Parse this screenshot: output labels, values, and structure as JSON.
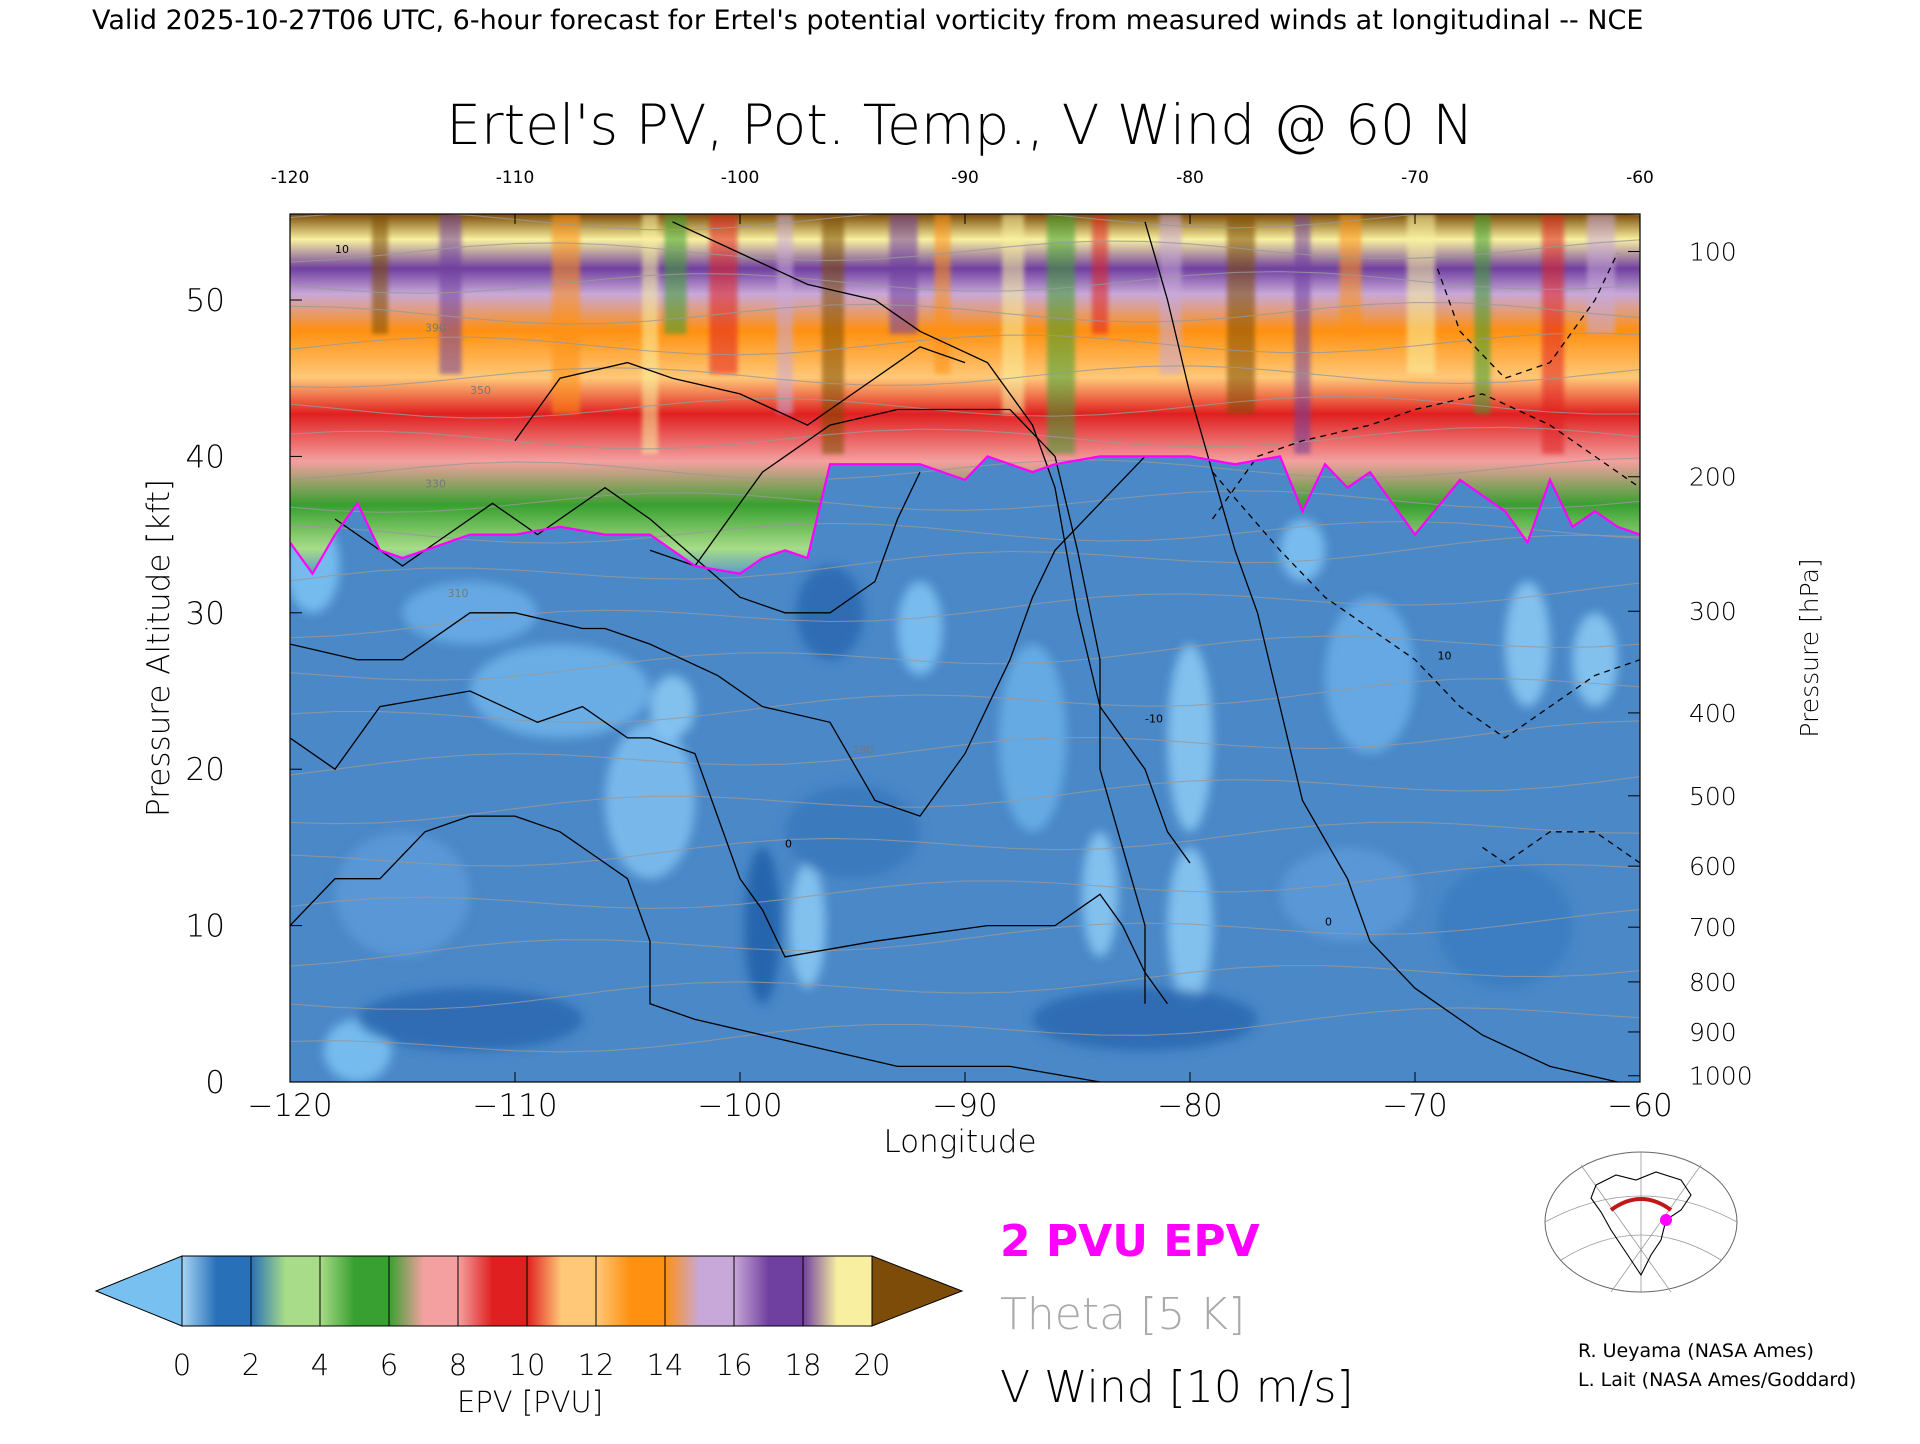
{
  "header": {
    "valid_line": "Valid 2025-10-27T06 UTC, 6-hour forecast for Ertel's potential vorticity from measured winds at longitudinal -- NCE"
  },
  "chart_data": {
    "type": "heatmap",
    "title": "Ertel's PV, Pot. Temp., V Wind @ 60 N",
    "xlabel": "Longitude",
    "ylabel": "Pressure Altitude [kft]",
    "ylabel_right": "Pressure [hPa]",
    "xlim": [
      -120,
      -60
    ],
    "ylim": [
      0,
      55.5
    ],
    "x_ticks": [
      -120,
      -110,
      -100,
      -90,
      -80,
      -70,
      -60
    ],
    "x_tick_labels": [
      "−120",
      "−110",
      "−100",
      "−90",
      "−80",
      "−70",
      "−60"
    ],
    "x_top_tick_labels": [
      "-120",
      "-110",
      "-100",
      "-90",
      "-80",
      "-70",
      "-60"
    ],
    "y_ticks": [
      0,
      10,
      20,
      30,
      40,
      50
    ],
    "y_tick_labels": [
      "0",
      "10",
      "20",
      "30",
      "40",
      "50"
    ],
    "pressure_ticks": [
      {
        "hPa": 100,
        "kft": 53.1,
        "label": "100"
      },
      {
        "hPa": 200,
        "kft": 38.7,
        "label": "200"
      },
      {
        "hPa": 300,
        "kft": 30.1,
        "label": "300"
      },
      {
        "hPa": 400,
        "kft": 23.6,
        "label": "400"
      },
      {
        "hPa": 500,
        "kft": 18.3,
        "label": "500"
      },
      {
        "hPa": 600,
        "kft": 13.8,
        "label": "600"
      },
      {
        "hPa": 700,
        "kft": 9.9,
        "label": "700"
      },
      {
        "hPa": 800,
        "kft": 6.4,
        "label": "800"
      },
      {
        "hPa": 900,
        "kft": 3.2,
        "label": "900"
      },
      {
        "hPa": 1000,
        "kft": 0.4,
        "label": "1000"
      }
    ],
    "pv_boundary_2pvu": {
      "lon": [
        -120,
        -119,
        -118,
        -117,
        -116,
        -115,
        -114,
        -113,
        -112,
        -110,
        -108,
        -106,
        -104,
        -102,
        -100,
        -99,
        -98,
        -97,
        -96,
        -95,
        -94,
        -92,
        -90,
        -89,
        -88,
        -87,
        -86,
        -84,
        -82,
        -80,
        -78,
        -76,
        -75,
        -74,
        -73,
        -72,
        -70,
        -68,
        -66,
        -65,
        -64,
        -63,
        -62,
        -61,
        -60
      ],
      "kft": [
        34.5,
        32.5,
        35.0,
        37.0,
        34.0,
        33.5,
        34.0,
        34.5,
        35.0,
        35.0,
        35.5,
        35.0,
        35.0,
        33.0,
        32.5,
        33.5,
        34.0,
        33.5,
        39.5,
        39.5,
        39.5,
        39.5,
        38.5,
        40.0,
        39.5,
        39.0,
        39.5,
        40.0,
        40.0,
        40.0,
        39.5,
        40.0,
        36.5,
        39.5,
        38.0,
        39.0,
        35.0,
        38.5,
        36.5,
        34.5,
        38.5,
        35.5,
        36.5,
        35.5,
        35.0
      ]
    },
    "vwind_contour_labels": [
      "10",
      "0",
      "-10"
    ],
    "theta_labels": [
      "390",
      "350",
      "330",
      "310",
      "290"
    ],
    "colorbar": {
      "label": "EPV [PVU]",
      "tick_labels": [
        "0",
        "2",
        "4",
        "6",
        "8",
        "10",
        "12",
        "14",
        "16",
        "18",
        "20"
      ],
      "colors": [
        "#78c0f0",
        "#2870b8",
        "#a8dc88",
        "#38a030",
        "#f4a0a0",
        "#e02020",
        "#ffc878",
        "#ff9010",
        "#c8a8d8",
        "#7040a0",
        "#f8f0a0",
        "#7c4c08"
      ]
    },
    "legend": {
      "pv_label": "2 PVU EPV",
      "theta_label": "Theta [5 K]",
      "wind_label": "V Wind [10 m/s]",
      "pv_color": "#ff00ff",
      "theta_color": "#aaaaaa",
      "wind_color": "#000000"
    }
  },
  "credits": {
    "line1": "R. Ueyama (NASA Ames)",
    "line2": "L. Lait (NASA Ames/Goddard)"
  }
}
